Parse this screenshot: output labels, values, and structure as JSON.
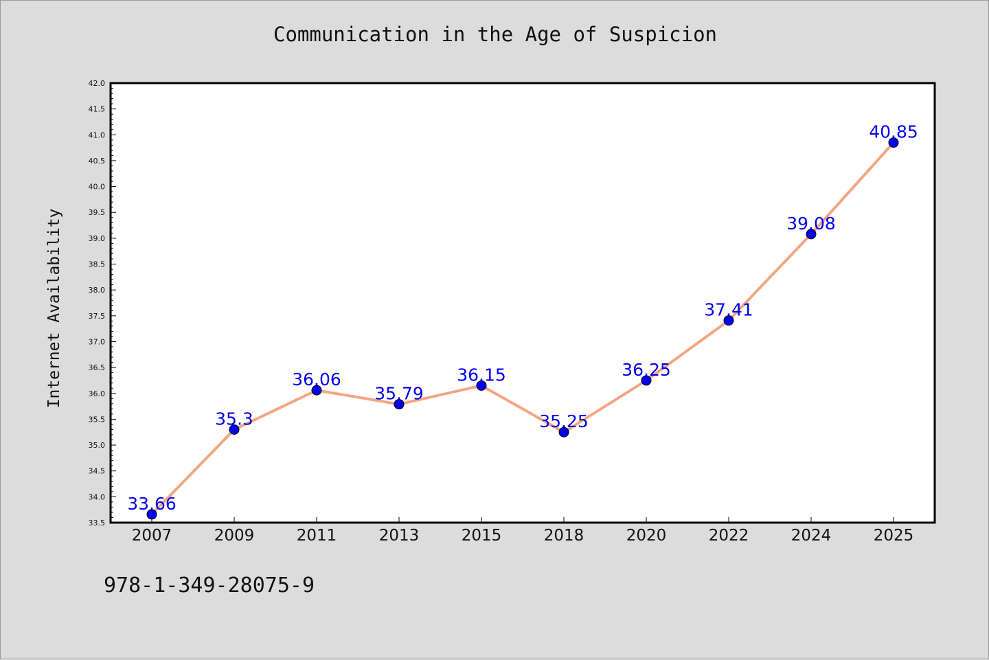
{
  "chart_data": {
    "type": "line",
    "title": "Communication in the Age of Suspicion",
    "ylabel": "Internet Availability",
    "xlabel": "",
    "categories": [
      "2007",
      "2009",
      "2011",
      "2013",
      "2015",
      "2018",
      "2020",
      "2022",
      "2024",
      "2025"
    ],
    "series": [
      {
        "values": [
          33.66,
          35.3,
          36.06,
          35.79,
          36.15,
          35.25,
          36.25,
          37.41,
          39.08,
          40.85
        ],
        "labels": [
          "33.66",
          "35.3",
          "36.06",
          "35.79",
          "36.15",
          "35.25",
          "36.25",
          "37.41",
          "39.08",
          "40.85"
        ]
      }
    ],
    "ylim": [
      33.5,
      42.0
    ],
    "yticks": [
      "33.5",
      "34.0",
      "34.5",
      "35.0",
      "35.5",
      "36.0",
      "36.5",
      "37.0",
      "37.5",
      "38.0",
      "38.5",
      "39.0",
      "39.5",
      "40.0",
      "40.5",
      "41.0",
      "41.5",
      "42.0"
    ],
    "grid": false,
    "line_color": "#f4a582",
    "marker_color": "#0000ee",
    "label_color": "#0000ee",
    "background_color": "#dcdcdc",
    "plot_background_color": "#ffffff"
  },
  "footer": {
    "text": "978-1-349-28075-9"
  }
}
